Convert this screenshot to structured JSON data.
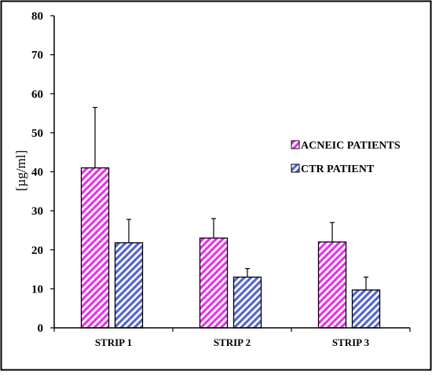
{
  "chart_data": {
    "type": "bar",
    "title": "",
    "xlabel": "",
    "ylabel": "[µg/ml]",
    "ylim": [
      0,
      80
    ],
    "yticks": [
      0,
      10,
      20,
      30,
      40,
      50,
      60,
      70,
      80
    ],
    "categories": [
      "STRIP 1",
      "STRIP 2",
      "STRIP 3"
    ],
    "series": [
      {
        "name": "ACNEIC PATIENTS",
        "values": [
          41,
          23,
          22
        ],
        "error": [
          15.5,
          5,
          5
        ],
        "color": "#e833e8",
        "pattern": "diagonal-hatch"
      },
      {
        "name": "CTR PATIENT",
        "values": [
          21.8,
          13,
          9.7
        ],
        "error": [
          6,
          2.2,
          3.3
        ],
        "color": "#5566cc",
        "pattern": "diagonal-hatch"
      }
    ],
    "grid": false,
    "legend_position": "right"
  }
}
